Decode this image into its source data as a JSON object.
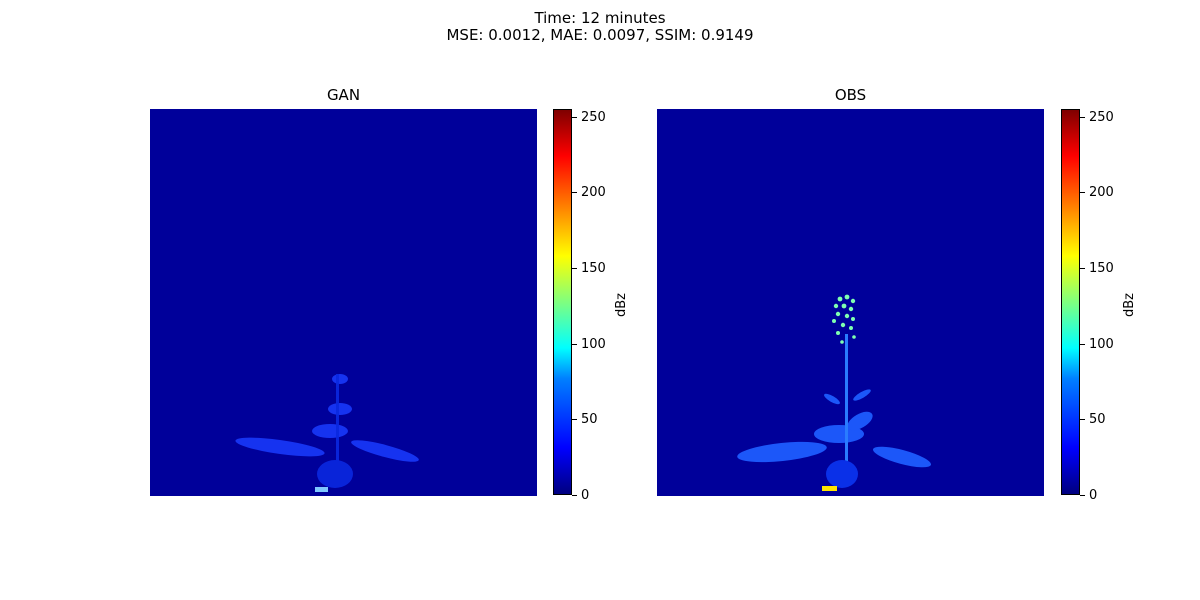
{
  "figure": {
    "title_line1": "Time: 12 minutes",
    "title_line2": "MSE: 0.0012, MAE: 0.0097, SSIM: 0.9149"
  },
  "chart_data": [
    {
      "type": "heatmap",
      "title": "GAN",
      "colormap": "jet",
      "colorbar": {
        "label": "dBz",
        "range": [
          0,
          255
        ],
        "ticks": [
          0,
          50,
          100,
          150,
          200,
          250
        ]
      },
      "background_value": 15,
      "axes": "off"
    },
    {
      "type": "heatmap",
      "title": "OBS",
      "colormap": "jet",
      "colorbar": {
        "label": "dBz",
        "range": [
          0,
          255
        ],
        "ticks": [
          0,
          50,
          100,
          150,
          200,
          250
        ]
      },
      "background_value": 15,
      "axes": "off"
    }
  ]
}
